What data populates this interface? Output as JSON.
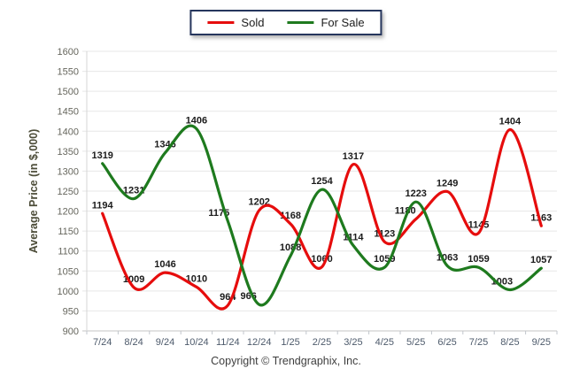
{
  "legend": {
    "items": [
      {
        "label": "Sold",
        "color": "#e60d0d"
      },
      {
        "label": "For Sale",
        "color": "#1e7a1e"
      }
    ]
  },
  "footer": {
    "copyright": "Copyright © Trendgraphix, Inc."
  },
  "chart_data": {
    "type": "line",
    "title": "",
    "xlabel": "",
    "ylabel": "Average Price (in $,000)",
    "categories": [
      "7/24",
      "8/24",
      "9/24",
      "10/24",
      "11/24",
      "12/24",
      "1/25",
      "2/25",
      "3/25",
      "4/25",
      "5/25",
      "6/25",
      "7/25",
      "8/25",
      "9/25"
    ],
    "series": [
      {
        "name": "Sold",
        "color": "#e60d0d",
        "values": [
          1194,
          1009,
          1046,
          1010,
          964,
          1202,
          1168,
          1060,
          1317,
          1123,
          1180,
          1249,
          1145,
          1404,
          1163
        ]
      },
      {
        "name": "For Sale",
        "color": "#1e7a1e",
        "values": [
          1319,
          1231,
          1346,
          1406,
          1175,
          966,
          1088,
          1254,
          1114,
          1059,
          1223,
          1063,
          1059,
          1003,
          1057
        ]
      }
    ],
    "ylim": [
      900,
      1600
    ],
    "ytick_step": 50,
    "grid": true,
    "smooth": true,
    "point_labels": true,
    "legend_position": "top-center",
    "label_offsets": {
      "Sold": {
        "10": [
          -12,
          0
        ]
      },
      "For Sale": {
        "4": [
          -10,
          0
        ],
        "5": [
          -12,
          0
        ],
        "13": [
          -9,
          0
        ]
      }
    }
  }
}
